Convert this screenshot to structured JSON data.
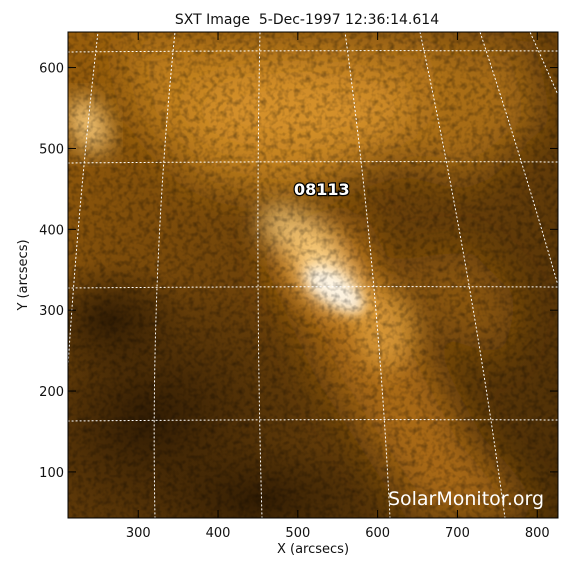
{
  "title": "SXT Image  5-Dec-1997 12:36:14.614",
  "x_axis": {
    "label": "X (arcsecs)",
    "range": [
      212,
      826
    ],
    "ticks": [
      300,
      400,
      500,
      600,
      700,
      800
    ]
  },
  "y_axis": {
    "label": "Y (arcsecs)",
    "range": [
      43,
      644
    ],
    "ticks": [
      100,
      200,
      300,
      400,
      500,
      600
    ]
  },
  "active_region": {
    "label": "08113",
    "x": 530,
    "y": 450
  },
  "watermark": "SolarMonitor.org",
  "colors": {
    "sun_dark": "#3a2204",
    "sun_mid": "#a56a10",
    "sun_bright": "#ffd27a",
    "sun_core": "#fff6e0",
    "grid": "#ffffff"
  }
}
